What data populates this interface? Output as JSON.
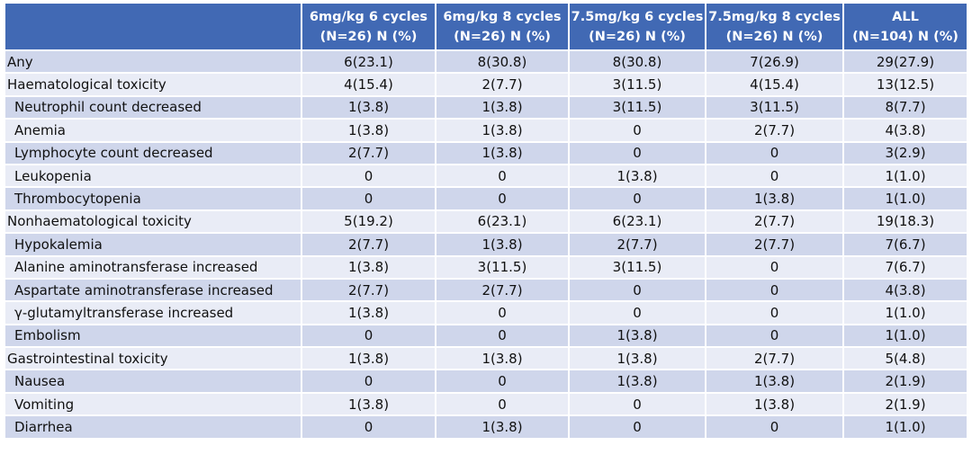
{
  "table": {
    "columns": [
      {
        "name": "6mg/kg 6 cycles",
        "sub": "(N=26) N (%)"
      },
      {
        "name": "6mg/kg 8 cycles",
        "sub": "(N=26) N (%)"
      },
      {
        "name": "7.5mg/kg 6 cycles",
        "sub": "(N=26) N (%)"
      },
      {
        "name": "7.5mg/kg 8 cycles",
        "sub": "(N=26) N (%)"
      },
      {
        "name": "ALL",
        "sub": "(N=104) N (%)"
      }
    ],
    "groups": [
      {
        "label": "Any",
        "values": [
          "6(23.1)",
          "8(30.8)",
          "8(30.8)",
          "7(26.9)",
          "29(27.9)"
        ],
        "items": []
      },
      {
        "label": "Haematological toxicity",
        "values": [
          "4(15.4)",
          "2(7.7)",
          "3(11.5)",
          "4(15.4)",
          "13(12.5)"
        ],
        "items": [
          {
            "label": "Neutrophil count decreased",
            "values": [
              "1(3.8)",
              "1(3.8)",
              "3(11.5)",
              "3(11.5)",
              "8(7.7)"
            ]
          },
          {
            "label": "Anemia",
            "values": [
              "1(3.8)",
              "1(3.8)",
              "0",
              "2(7.7)",
              "4(3.8)"
            ]
          },
          {
            "label": "Lymphocyte count decreased",
            "values": [
              "2(7.7)",
              "1(3.8)",
              "0",
              "0",
              "3(2.9)"
            ]
          },
          {
            "label": "Leukopenia",
            "values": [
              "0",
              "0",
              "1(3.8)",
              "0",
              "1(1.0)"
            ]
          },
          {
            "label": "Thrombocytopenia",
            "values": [
              "0",
              "0",
              "0",
              "1(3.8)",
              "1(1.0)"
            ]
          }
        ]
      },
      {
        "label": "Nonhaematological toxicity",
        "values": [
          "5(19.2)",
          "6(23.1)",
          "6(23.1)",
          "2(7.7)",
          "19(18.3)"
        ],
        "items": [
          {
            "label": "Hypokalemia",
            "values": [
              "2(7.7)",
              "1(3.8)",
              "2(7.7)",
              "2(7.7)",
              "7(6.7)"
            ]
          },
          {
            "label": "Alanine aminotransferase increased",
            "values": [
              "1(3.8)",
              "3(11.5)",
              "3(11.5)",
              "0",
              "7(6.7)"
            ]
          },
          {
            "label": "Aspartate aminotransferase increased",
            "values": [
              "2(7.7)",
              "2(7.7)",
              "0",
              "0",
              "4(3.8)"
            ]
          },
          {
            "label": "γ-glutamyltransferase increased",
            "values": [
              "1(3.8)",
              "0",
              "0",
              "0",
              "1(1.0)"
            ]
          },
          {
            "label": "Embolism",
            "values": [
              "0",
              "0",
              "1(3.8)",
              "0",
              "1(1.0)"
            ]
          }
        ]
      },
      {
        "label": "Gastrointestinal toxicity",
        "values": [
          "1(3.8)",
          "1(3.8)",
          "1(3.8)",
          "2(7.7)",
          "5(4.8)"
        ],
        "items": [
          {
            "label": "Nausea",
            "values": [
              "0",
              "0",
              "1(3.8)",
              "1(3.8)",
              "2(1.9)"
            ]
          },
          {
            "label": "Vomiting",
            "values": [
              "1(3.8)",
              "0",
              "0",
              "1(3.8)",
              "2(1.9)"
            ]
          },
          {
            "label": "Diarrhea",
            "values": [
              "0",
              "1(3.8)",
              "0",
              "0",
              "1(1.0)"
            ]
          }
        ]
      }
    ]
  }
}
